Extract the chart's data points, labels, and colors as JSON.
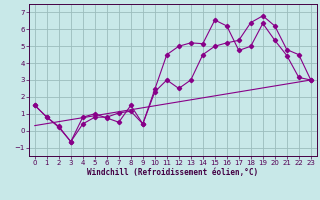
{
  "xlabel": "Windchill (Refroidissement éolien,°C)",
  "background_color": "#c8e8e8",
  "grid_color": "#9bbcbc",
  "line_color": "#880088",
  "xlim": [
    -0.5,
    23.5
  ],
  "ylim": [
    -1.5,
    7.5
  ],
  "yticks": [
    -1,
    0,
    1,
    2,
    3,
    4,
    5,
    6,
    7
  ],
  "xticks": [
    0,
    1,
    2,
    3,
    4,
    5,
    6,
    7,
    8,
    9,
    10,
    11,
    12,
    13,
    14,
    15,
    16,
    17,
    18,
    19,
    20,
    21,
    22,
    23
  ],
  "series1_x": [
    0,
    1,
    2,
    3,
    4,
    5,
    6,
    7,
    8,
    9,
    10,
    11,
    12,
    13,
    14,
    15,
    16,
    17,
    18,
    19,
    20,
    21,
    22,
    23
  ],
  "series1_y": [
    1.5,
    0.8,
    0.2,
    -0.65,
    0.8,
    1.0,
    0.75,
    0.5,
    1.5,
    0.4,
    2.3,
    3.0,
    2.5,
    3.0,
    4.5,
    5.0,
    5.2,
    5.35,
    6.4,
    6.8,
    6.2,
    4.8,
    4.5,
    3.0
  ],
  "series2_x": [
    0,
    1,
    2,
    3,
    4,
    5,
    6,
    7,
    8,
    9,
    10,
    11,
    12,
    13,
    14,
    15,
    16,
    17,
    18,
    19,
    20,
    21,
    22,
    23
  ],
  "series2_y": [
    1.5,
    0.8,
    0.25,
    -0.65,
    0.4,
    0.8,
    0.8,
    1.05,
    1.15,
    0.4,
    2.45,
    4.5,
    5.0,
    5.2,
    5.15,
    6.55,
    6.2,
    4.75,
    5.0,
    6.35,
    5.35,
    4.45,
    3.15,
    3.0
  ],
  "series3_x": [
    0,
    23
  ],
  "series3_y": [
    0.3,
    3.0
  ]
}
